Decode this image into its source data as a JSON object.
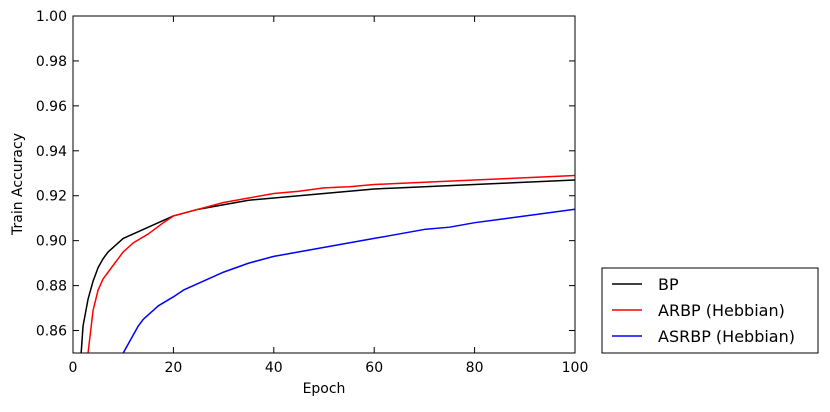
{
  "chart_data": {
    "type": "line",
    "title": "",
    "xlabel": "Epoch",
    "ylabel": "Train Accuracy",
    "xlim": [
      0,
      100
    ],
    "ylim": [
      0.85,
      1.0
    ],
    "xticks": [
      0,
      20,
      40,
      60,
      80,
      100
    ],
    "xtick_labels": [
      "0",
      "20",
      "40",
      "60",
      "80",
      "100"
    ],
    "yticks": [
      0.86,
      0.88,
      0.9,
      0.92,
      0.94,
      0.96,
      0.98,
      1.0
    ],
    "ytick_labels": [
      "0.86",
      "0.88",
      "0.90",
      "0.92",
      "0.94",
      "0.96",
      "0.98",
      "1.00"
    ],
    "grid": false,
    "legend_position": "outside-right-bottom",
    "series": [
      {
        "name": "BP",
        "color": "#000000",
        "points": [
          [
            1,
            0.83
          ],
          [
            2,
            0.862
          ],
          [
            3,
            0.874
          ],
          [
            4,
            0.882
          ],
          [
            5,
            0.888
          ],
          [
            6,
            0.892
          ],
          [
            7,
            0.895
          ],
          [
            8,
            0.897
          ],
          [
            9,
            0.899
          ],
          [
            10,
            0.901
          ],
          [
            12,
            0.903
          ],
          [
            15,
            0.906
          ],
          [
            18,
            0.909
          ],
          [
            20,
            0.911
          ],
          [
            25,
            0.914
          ],
          [
            30,
            0.916
          ],
          [
            35,
            0.918
          ],
          [
            40,
            0.919
          ],
          [
            45,
            0.92
          ],
          [
            50,
            0.921
          ],
          [
            55,
            0.922
          ],
          [
            60,
            0.923
          ],
          [
            65,
            0.9235
          ],
          [
            70,
            0.924
          ],
          [
            75,
            0.9245
          ],
          [
            80,
            0.925
          ],
          [
            85,
            0.9255
          ],
          [
            90,
            0.926
          ],
          [
            95,
            0.9265
          ],
          [
            100,
            0.927
          ]
        ]
      },
      {
        "name": "ARBP (Hebbian)",
        "color": "#ff0000",
        "points": [
          [
            3,
            0.85
          ],
          [
            4,
            0.869
          ],
          [
            5,
            0.878
          ],
          [
            6,
            0.883
          ],
          [
            7,
            0.886
          ],
          [
            8,
            0.889
          ],
          [
            9,
            0.892
          ],
          [
            10,
            0.895
          ],
          [
            12,
            0.899
          ],
          [
            15,
            0.903
          ],
          [
            18,
            0.908
          ],
          [
            20,
            0.911
          ],
          [
            25,
            0.914
          ],
          [
            30,
            0.917
          ],
          [
            35,
            0.919
          ],
          [
            40,
            0.921
          ],
          [
            45,
            0.922
          ],
          [
            50,
            0.9235
          ],
          [
            55,
            0.924
          ],
          [
            60,
            0.925
          ],
          [
            65,
            0.9255
          ],
          [
            70,
            0.926
          ],
          [
            75,
            0.9265
          ],
          [
            80,
            0.927
          ],
          [
            85,
            0.9275
          ],
          [
            90,
            0.928
          ],
          [
            95,
            0.9285
          ],
          [
            100,
            0.929
          ]
        ]
      },
      {
        "name": "ASRBP (Hebbian)",
        "color": "#0000ff",
        "points": [
          [
            10,
            0.85
          ],
          [
            11,
            0.854
          ],
          [
            12,
            0.858
          ],
          [
            13,
            0.862
          ],
          [
            14,
            0.865
          ],
          [
            15,
            0.867
          ],
          [
            17,
            0.871
          ],
          [
            20,
            0.875
          ],
          [
            22,
            0.878
          ],
          [
            25,
            0.881
          ],
          [
            28,
            0.884
          ],
          [
            30,
            0.886
          ],
          [
            35,
            0.89
          ],
          [
            40,
            0.893
          ],
          [
            45,
            0.895
          ],
          [
            50,
            0.897
          ],
          [
            55,
            0.899
          ],
          [
            60,
            0.901
          ],
          [
            65,
            0.903
          ],
          [
            70,
            0.905
          ],
          [
            75,
            0.906
          ],
          [
            80,
            0.908
          ],
          [
            85,
            0.9095
          ],
          [
            90,
            0.911
          ],
          [
            95,
            0.9125
          ],
          [
            100,
            0.914
          ]
        ]
      }
    ]
  }
}
